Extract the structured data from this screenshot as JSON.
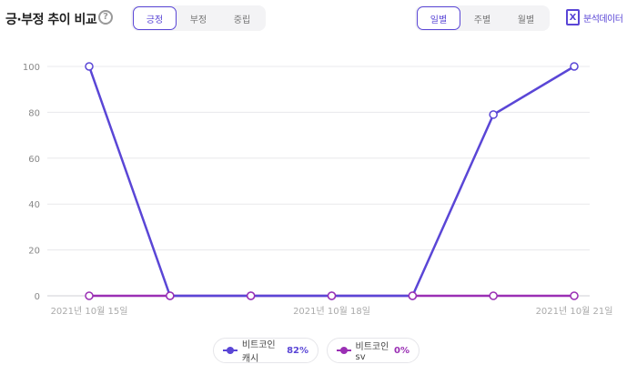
{
  "header": {
    "title": "긍·부정 추이 비교",
    "help_icon": "?",
    "sentiment_tabs": [
      "긍정",
      "부정",
      "중립"
    ],
    "sentiment_active": "긍정",
    "period_tabs": [
      "일별",
      "주별",
      "월별"
    ],
    "period_active": "일별",
    "export_label": "분석데이터",
    "export_icon": "X"
  },
  "colors": {
    "accent": "#5a46d6",
    "series1": "#5a46d6",
    "series2": "#9a2fb4",
    "grid": "#e8e8ec"
  },
  "legend": [
    {
      "name": "비트코인캐시",
      "percent": "82%"
    },
    {
      "name": "비트코인sv",
      "percent": "0%"
    }
  ],
  "chart_data": {
    "type": "line",
    "x": [
      "2021-10-15",
      "2021-10-16",
      "2021-10-17",
      "2021-10-18",
      "2021-10-19",
      "2021-10-20",
      "2021-10-21"
    ],
    "x_tick_labels": [
      "2021년 10월 15일",
      "2021년 10월 18일",
      "2021년 10월 21일"
    ],
    "y_ticks": [
      "0",
      "20",
      "40",
      "60",
      "80",
      "100"
    ],
    "ylim": [
      0,
      100
    ],
    "grid": true,
    "series": [
      {
        "name": "비트코인캐시",
        "values": [
          100,
          0,
          0,
          0,
          0,
          79,
          100
        ]
      },
      {
        "name": "비트코인sv",
        "values": [
          0,
          0,
          0,
          0,
          0,
          0,
          0
        ]
      }
    ]
  }
}
